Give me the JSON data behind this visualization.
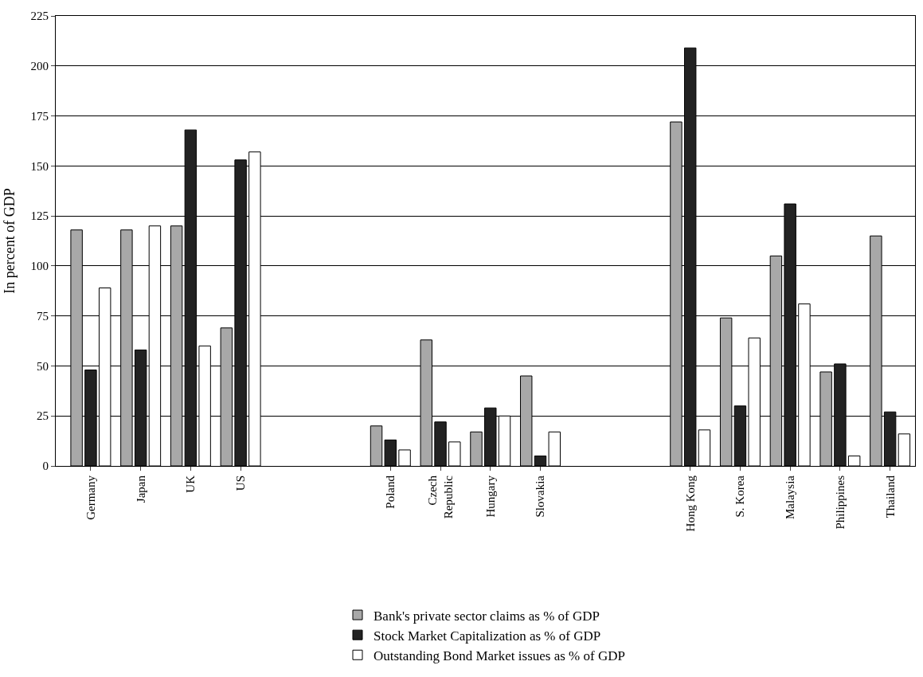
{
  "chart_data": {
    "type": "bar",
    "ylabel": "In percent of GDP",
    "categories": [
      "Germany",
      "Japan",
      "UK",
      "US",
      null,
      null,
      "Poland",
      "Czech Republic",
      "Hungary",
      "Slovakia",
      null,
      null,
      "Hong Kong",
      "S. Korea",
      "Malaysia",
      "Philippines",
      "Thailand"
    ],
    "series": [
      {
        "name": "Bank's private sector claims as % of GDP",
        "color": "#a8a8a8",
        "values": [
          118,
          118,
          120,
          69,
          null,
          null,
          20,
          63,
          17,
          45,
          null,
          null,
          172,
          74,
          105,
          47,
          115
        ]
      },
      {
        "name": "Stock Market Capitalization as % of GDP",
        "color": "#222222",
        "values": [
          48,
          58,
          168,
          153,
          null,
          null,
          13,
          22,
          29,
          5,
          null,
          null,
          209,
          30,
          131,
          51,
          27
        ]
      },
      {
        "name": "Outstanding Bond Market issues as % of GDP",
        "color": "#ffffff",
        "values": [
          89,
          120,
          60,
          157,
          null,
          null,
          8,
          12,
          25,
          17,
          null,
          null,
          18,
          64,
          81,
          5,
          16
        ]
      }
    ],
    "ylim": [
      0,
      225
    ],
    "yticks": [
      0,
      25,
      50,
      75,
      100,
      125,
      150,
      175,
      200,
      225
    ],
    "grid": "y",
    "legend": "bottom"
  }
}
